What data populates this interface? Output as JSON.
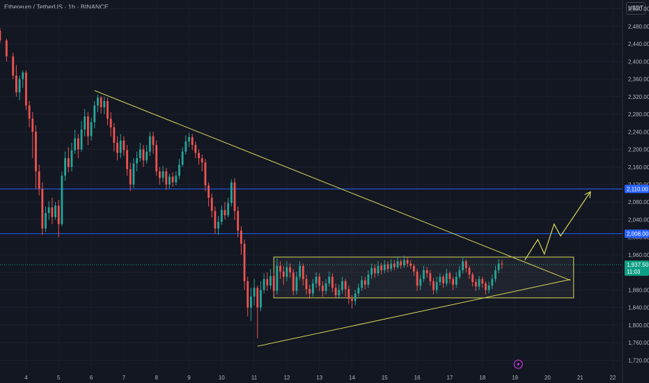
{
  "header": {
    "symbol_title": "Ethereum / TetherUS · 1h · BINANCE",
    "currency_button": "USDT"
  },
  "colors": {
    "background": "#131722",
    "up_candle": "#26a69a",
    "down_candle": "#ef5350",
    "trendline": "#d9d95a",
    "level_line": "#2962ff",
    "level_tag": "#2962ff",
    "price_tag": "#0e9f85"
  },
  "chart_data": {
    "type": "candlestick",
    "ylim": [
      1700,
      2540
    ],
    "y_ticks": [
      "2,520.00",
      "2,480.00",
      "2,440.00",
      "2,400.00",
      "2,360.00",
      "2,320.00",
      "2,280.00",
      "2,240.00",
      "2,200.00",
      "2,160.00",
      "2,120.00",
      "2,080.00",
      "2,040.00",
      "2,000.00",
      "1,960.00",
      "1,920.00",
      "1,880.00",
      "1,840.00",
      "1,800.00",
      "1,760.00",
      "1,720.00"
    ],
    "x_ticks": [
      "4",
      "5",
      "6",
      "7",
      "8",
      "9",
      "10",
      "11",
      "12",
      "13",
      "14",
      "15",
      "16",
      "17",
      "18",
      "19",
      "20",
      "21",
      "22"
    ],
    "x_range_days": [
      3.2,
      22.3
    ],
    "horizontal_levels": [
      {
        "price": 2110.0,
        "label": "2,110.00"
      },
      {
        "price": 2008.0,
        "label": "2,008.00"
      }
    ],
    "current_price": {
      "price": 1937.5,
      "label": "1,937.50",
      "countdown": "11:03"
    },
    "trendlines": [
      {
        "name": "descending-resistance",
        "points": [
          [
            6.1,
            2334
          ],
          [
            20.7,
            1902
          ]
        ]
      },
      {
        "name": "ascending-support",
        "points": [
          [
            11.1,
            1752
          ],
          [
            20.7,
            1904
          ]
        ]
      }
    ],
    "range_box": {
      "x": [
        11.6,
        20.8
      ],
      "y": [
        1862,
        1955
      ]
    },
    "projection_path": [
      [
        19.3,
        1948
      ],
      [
        19.7,
        1995
      ],
      [
        19.9,
        1962
      ],
      [
        20.2,
        2030
      ],
      [
        20.4,
        2003
      ],
      [
        21.3,
        2102
      ]
    ],
    "candles": [
      [
        3.2,
        2470,
        2448,
        2476,
        2442
      ],
      [
        3.4,
        2448,
        2412,
        2452,
        2400
      ],
      [
        3.6,
        2412,
        2368,
        2420,
        2360
      ],
      [
        3.7,
        2368,
        2330,
        2392,
        2320
      ],
      [
        3.8,
        2330,
        2360,
        2368,
        2312
      ],
      [
        3.9,
        2360,
        2375,
        2380,
        2340
      ],
      [
        4.0,
        2375,
        2300,
        2380,
        2290
      ],
      [
        4.1,
        2300,
        2270,
        2310,
        2250
      ],
      [
        4.2,
        2270,
        2240,
        2285,
        2180
      ],
      [
        4.3,
        2240,
        2150,
        2255,
        2110
      ],
      [
        4.4,
        2150,
        2110,
        2165,
        2095
      ],
      [
        4.5,
        2110,
        2020,
        2125,
        2005
      ],
      [
        4.6,
        2020,
        2055,
        2070,
        2012
      ],
      [
        4.7,
        2055,
        2068,
        2082,
        2040
      ],
      [
        4.8,
        2068,
        2046,
        2090,
        2030
      ],
      [
        4.9,
        2046,
        2072,
        2080,
        2040
      ],
      [
        5.0,
        2072,
        2030,
        2085,
        2000
      ],
      [
        5.1,
        2030,
        2140,
        2150,
        2025
      ],
      [
        5.2,
        2140,
        2180,
        2195,
        2128
      ],
      [
        5.3,
        2180,
        2160,
        2205,
        2148
      ],
      [
        5.4,
        2160,
        2198,
        2215,
        2150
      ],
      [
        5.5,
        2198,
        2225,
        2245,
        2190
      ],
      [
        5.6,
        2225,
        2200,
        2235,
        2180
      ],
      [
        5.7,
        2200,
        2245,
        2265,
        2195
      ],
      [
        5.8,
        2245,
        2275,
        2292,
        2230
      ],
      [
        5.9,
        2275,
        2230,
        2285,
        2210
      ],
      [
        6.0,
        2230,
        2262,
        2272,
        2220
      ],
      [
        6.1,
        2262,
        2300,
        2310,
        2248
      ],
      [
        6.2,
        2300,
        2318,
        2325,
        2285
      ],
      [
        6.3,
        2318,
        2296,
        2322,
        2282
      ],
      [
        6.4,
        2296,
        2310,
        2320,
        2280
      ],
      [
        6.5,
        2310,
        2270,
        2318,
        2255
      ],
      [
        6.6,
        2270,
        2250,
        2285,
        2230
      ],
      [
        6.7,
        2250,
        2215,
        2260,
        2195
      ],
      [
        6.8,
        2215,
        2192,
        2230,
        2175
      ],
      [
        6.9,
        2192,
        2220,
        2235,
        2180
      ],
      [
        7.0,
        2220,
        2198,
        2230,
        2185
      ],
      [
        7.1,
        2198,
        2155,
        2210,
        2140
      ],
      [
        7.2,
        2155,
        2120,
        2170,
        2105
      ],
      [
        7.3,
        2120,
        2168,
        2180,
        2112
      ],
      [
        7.4,
        2168,
        2180,
        2195,
        2150
      ],
      [
        7.5,
        2180,
        2200,
        2215,
        2172
      ],
      [
        7.6,
        2200,
        2175,
        2210,
        2160
      ],
      [
        7.7,
        2175,
        2195,
        2210,
        2168
      ],
      [
        7.8,
        2195,
        2230,
        2240,
        2185
      ],
      [
        7.9,
        2230,
        2210,
        2240,
        2190
      ],
      [
        8.0,
        2210,
        2150,
        2220,
        2140
      ],
      [
        8.1,
        2150,
        2135,
        2160,
        2120
      ],
      [
        8.2,
        2135,
        2150,
        2162,
        2125
      ],
      [
        8.3,
        2150,
        2120,
        2158,
        2108
      ],
      [
        8.4,
        2120,
        2138,
        2145,
        2110
      ],
      [
        8.5,
        2138,
        2125,
        2148,
        2115
      ],
      [
        8.6,
        2125,
        2140,
        2150,
        2118
      ],
      [
        8.7,
        2140,
        2165,
        2178,
        2132
      ],
      [
        8.8,
        2165,
        2195,
        2205,
        2160
      ],
      [
        8.9,
        2195,
        2218,
        2232,
        2188
      ],
      [
        9.0,
        2218,
        2228,
        2238,
        2205
      ],
      [
        9.1,
        2228,
        2210,
        2235,
        2198
      ],
      [
        9.2,
        2210,
        2192,
        2218,
        2180
      ],
      [
        9.3,
        2192,
        2180,
        2200,
        2165
      ],
      [
        9.4,
        2180,
        2170,
        2188,
        2150
      ],
      [
        9.5,
        2170,
        2118,
        2178,
        2105
      ],
      [
        9.6,
        2118,
        2090,
        2125,
        2070
      ],
      [
        9.7,
        2090,
        2060,
        2100,
        2045
      ],
      [
        9.8,
        2060,
        2020,
        2070,
        2008
      ],
      [
        9.9,
        2020,
        2035,
        2048,
        2005
      ],
      [
        10.0,
        2035,
        2062,
        2072,
        2028
      ],
      [
        10.1,
        2062,
        2050,
        2080,
        2040
      ],
      [
        10.2,
        2050,
        2078,
        2090,
        2045
      ],
      [
        10.3,
        2078,
        2125,
        2132,
        2070
      ],
      [
        10.4,
        2125,
        2060,
        2135,
        2040
      ],
      [
        10.5,
        2060,
        2015,
        2070,
        2000
      ],
      [
        10.6,
        2015,
        1985,
        2025,
        1960
      ],
      [
        10.7,
        1985,
        1900,
        1995,
        1880
      ],
      [
        10.8,
        1900,
        1840,
        1910,
        1820
      ],
      [
        10.9,
        1840,
        1865,
        1885,
        1810
      ],
      [
        11.0,
        1865,
        1885,
        1905,
        1845
      ],
      [
        11.1,
        1885,
        1840,
        1890,
        1770
      ],
      [
        11.2,
        1840,
        1880,
        1900,
        1832
      ],
      [
        11.3,
        1880,
        1905,
        1918,
        1872
      ],
      [
        11.4,
        1905,
        1890,
        1920,
        1878
      ],
      [
        11.5,
        1890,
        1912,
        1928,
        1882
      ],
      [
        11.6,
        1912,
        1878,
        1920,
        1865
      ],
      [
        11.7,
        1878,
        1935,
        1952,
        1870
      ],
      [
        11.8,
        1935,
        1922,
        1945,
        1905
      ],
      [
        11.9,
        1922,
        1910,
        1935,
        1892
      ],
      [
        12.0,
        1910,
        1932,
        1945,
        1900
      ],
      [
        12.1,
        1932,
        1920,
        1940,
        1908
      ],
      [
        12.2,
        1920,
        1878,
        1928,
        1868
      ],
      [
        12.3,
        1878,
        1910,
        1922,
        1870
      ],
      [
        12.4,
        1910,
        1935,
        1945,
        1902
      ],
      [
        12.5,
        1935,
        1905,
        1940,
        1890
      ],
      [
        12.6,
        1905,
        1882,
        1915,
        1870
      ],
      [
        12.7,
        1882,
        1872,
        1892,
        1860
      ],
      [
        12.8,
        1872,
        1895,
        1905,
        1865
      ],
      [
        12.9,
        1895,
        1910,
        1920,
        1885
      ],
      [
        13.0,
        1910,
        1890,
        1918,
        1878
      ],
      [
        13.1,
        1890,
        1878,
        1900,
        1865
      ],
      [
        13.2,
        1878,
        1895,
        1905,
        1870
      ],
      [
        13.3,
        1895,
        1910,
        1922,
        1888
      ],
      [
        13.4,
        1910,
        1885,
        1918,
        1875
      ],
      [
        13.5,
        1885,
        1868,
        1895,
        1860
      ],
      [
        13.6,
        1868,
        1880,
        1892,
        1860
      ],
      [
        13.7,
        1880,
        1900,
        1910,
        1872
      ],
      [
        13.8,
        1900,
        1882,
        1905,
        1865
      ],
      [
        13.9,
        1882,
        1860,
        1890,
        1848
      ],
      [
        14.0,
        1860,
        1855,
        1868,
        1838
      ],
      [
        14.1,
        1855,
        1872,
        1880,
        1845
      ],
      [
        14.2,
        1872,
        1885,
        1895,
        1865
      ],
      [
        14.3,
        1885,
        1902,
        1912,
        1878
      ],
      [
        14.4,
        1902,
        1892,
        1910,
        1882
      ],
      [
        14.5,
        1892,
        1915,
        1925,
        1885
      ],
      [
        14.6,
        1915,
        1930,
        1940,
        1905
      ],
      [
        14.7,
        1930,
        1918,
        1938,
        1908
      ],
      [
        14.8,
        1918,
        1935,
        1945,
        1912
      ],
      [
        14.9,
        1935,
        1925,
        1942,
        1915
      ],
      [
        15.0,
        1925,
        1938,
        1948,
        1918
      ],
      [
        15.1,
        1938,
        1928,
        1945,
        1920
      ],
      [
        15.2,
        1928,
        1940,
        1950,
        1922
      ],
      [
        15.3,
        1940,
        1932,
        1948,
        1925
      ],
      [
        15.4,
        1932,
        1945,
        1955,
        1928
      ],
      [
        15.5,
        1945,
        1936,
        1950,
        1928
      ],
      [
        15.6,
        1936,
        1948,
        1958,
        1930
      ],
      [
        15.7,
        1948,
        1940,
        1955,
        1932
      ],
      [
        15.8,
        1940,
        1935,
        1948,
        1928
      ],
      [
        15.9,
        1935,
        1922,
        1940,
        1912
      ],
      [
        16.0,
        1922,
        1890,
        1928,
        1878
      ],
      [
        16.1,
        1890,
        1905,
        1915,
        1880
      ],
      [
        16.2,
        1905,
        1925,
        1935,
        1898
      ],
      [
        16.3,
        1925,
        1918,
        1932,
        1908
      ],
      [
        16.4,
        1918,
        1900,
        1925,
        1890
      ],
      [
        16.5,
        1900,
        1880,
        1908,
        1870
      ],
      [
        16.6,
        1880,
        1898,
        1910,
        1872
      ],
      [
        16.7,
        1898,
        1910,
        1918,
        1890
      ],
      [
        16.8,
        1910,
        1895,
        1915,
        1885
      ],
      [
        16.9,
        1895,
        1918,
        1928,
        1888
      ],
      [
        17.0,
        1918,
        1905,
        1922,
        1895
      ],
      [
        17.1,
        1905,
        1892,
        1910,
        1880
      ],
      [
        17.2,
        1892,
        1910,
        1920,
        1885
      ],
      [
        17.3,
        1910,
        1925,
        1935,
        1905
      ],
      [
        17.4,
        1925,
        1945,
        1955,
        1918
      ],
      [
        17.5,
        1945,
        1930,
        1950,
        1920
      ],
      [
        17.6,
        1930,
        1915,
        1935,
        1905
      ],
      [
        17.7,
        1915,
        1898,
        1920,
        1888
      ],
      [
        17.8,
        1898,
        1888,
        1905,
        1878
      ],
      [
        17.9,
        1888,
        1905,
        1912,
        1880
      ],
      [
        18.0,
        1905,
        1895,
        1910,
        1885
      ],
      [
        18.1,
        1895,
        1880,
        1900,
        1870
      ],
      [
        18.2,
        1880,
        1890,
        1898,
        1872
      ],
      [
        18.3,
        1890,
        1905,
        1915,
        1882
      ],
      [
        18.4,
        1905,
        1925,
        1935,
        1898
      ],
      [
        18.5,
        1925,
        1940,
        1950,
        1918
      ],
      [
        18.6,
        1940,
        1938,
        1948,
        1928
      ]
    ]
  }
}
